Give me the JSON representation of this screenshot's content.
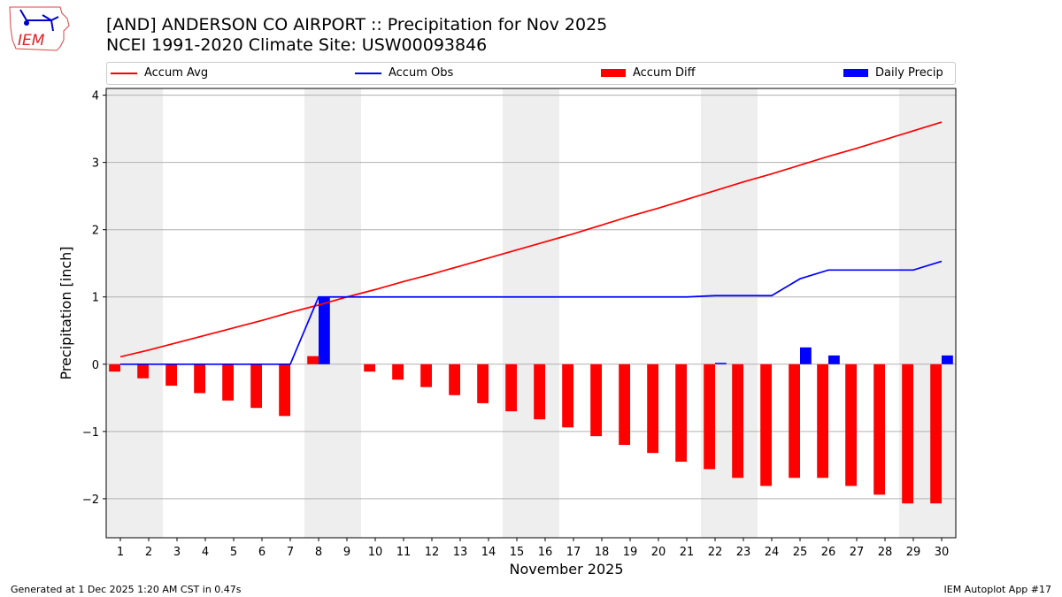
{
  "header": {
    "title_line1": "[AND] ANDERSON CO AIRPORT :: Precipitation for Nov 2025",
    "title_line2": "NCEI 1991-2020 Climate Site: USW00093846",
    "logo_text": "IEM"
  },
  "footer": {
    "left": "Generated at 1 Dec 2025 1:20 AM CST in 0.47s",
    "right": "IEM Autoplot App #17"
  },
  "chart_data": {
    "type": "bar+line",
    "xlabel": "November 2025",
    "ylabel": "Precipitation [inch]",
    "xlim": [
      0.5,
      30.5
    ],
    "ylim": [
      -2.58,
      4.1
    ],
    "yticks": [
      -2,
      -1,
      0,
      1,
      2,
      3,
      4
    ],
    "ytick_labels": [
      "−2",
      "−1",
      "0",
      "1",
      "2",
      "3",
      "4"
    ],
    "grid": "horizontal",
    "legend_placement": "top",
    "x": [
      1,
      2,
      3,
      4,
      5,
      6,
      7,
      8,
      9,
      10,
      11,
      12,
      13,
      14,
      15,
      16,
      17,
      18,
      19,
      20,
      21,
      22,
      23,
      24,
      25,
      26,
      27,
      28,
      29,
      30
    ],
    "shaded_ranges": [
      [
        0.5,
        2.5
      ],
      [
        7.5,
        9.5
      ],
      [
        14.5,
        16.5
      ],
      [
        21.5,
        23.5
      ],
      [
        28.5,
        30.5
      ]
    ],
    "series": [
      {
        "name": "Accum Avg",
        "type": "line",
        "color": "#ff0000",
        "values": [
          0.11,
          0.21,
          0.32,
          0.43,
          0.54,
          0.65,
          0.77,
          0.88,
          1.0,
          1.11,
          1.23,
          1.34,
          1.46,
          1.58,
          1.7,
          1.82,
          1.94,
          2.07,
          2.2,
          2.32,
          2.45,
          2.58,
          2.71,
          2.83,
          2.96,
          3.09,
          3.21,
          3.34,
          3.47,
          3.6
        ]
      },
      {
        "name": "Accum Obs",
        "type": "line",
        "color": "#0000ff",
        "values": [
          0,
          0,
          0,
          0,
          0,
          0,
          0,
          1.0,
          1.0,
          1.0,
          1.0,
          1.0,
          1.0,
          1.0,
          1.0,
          1.0,
          1.0,
          1.0,
          1.0,
          1.0,
          1.0,
          1.02,
          1.02,
          1.02,
          1.27,
          1.4,
          1.4,
          1.4,
          1.4,
          1.53
        ]
      },
      {
        "name": "Accum Diff",
        "type": "bar",
        "color": "#ff0000",
        "values": [
          -0.11,
          -0.21,
          -0.32,
          -0.43,
          -0.54,
          -0.65,
          -0.77,
          0.12,
          0.0,
          -0.11,
          -0.23,
          -0.34,
          -0.46,
          -0.58,
          -0.7,
          -0.82,
          -0.94,
          -1.07,
          -1.2,
          -1.32,
          -1.45,
          -1.56,
          -1.69,
          -1.81,
          -1.69,
          -1.69,
          -1.81,
          -1.94,
          -2.07,
          -2.07
        ]
      },
      {
        "name": "Daily Precip",
        "type": "bar",
        "color": "#0000ff",
        "values": [
          0,
          0,
          0,
          0,
          0,
          0,
          0,
          1.0,
          0,
          0,
          0,
          0,
          0,
          0,
          0,
          0,
          0,
          0,
          0,
          0,
          0,
          0.02,
          0,
          0,
          0.25,
          0.13,
          0,
          0,
          0,
          0.13
        ]
      }
    ]
  }
}
